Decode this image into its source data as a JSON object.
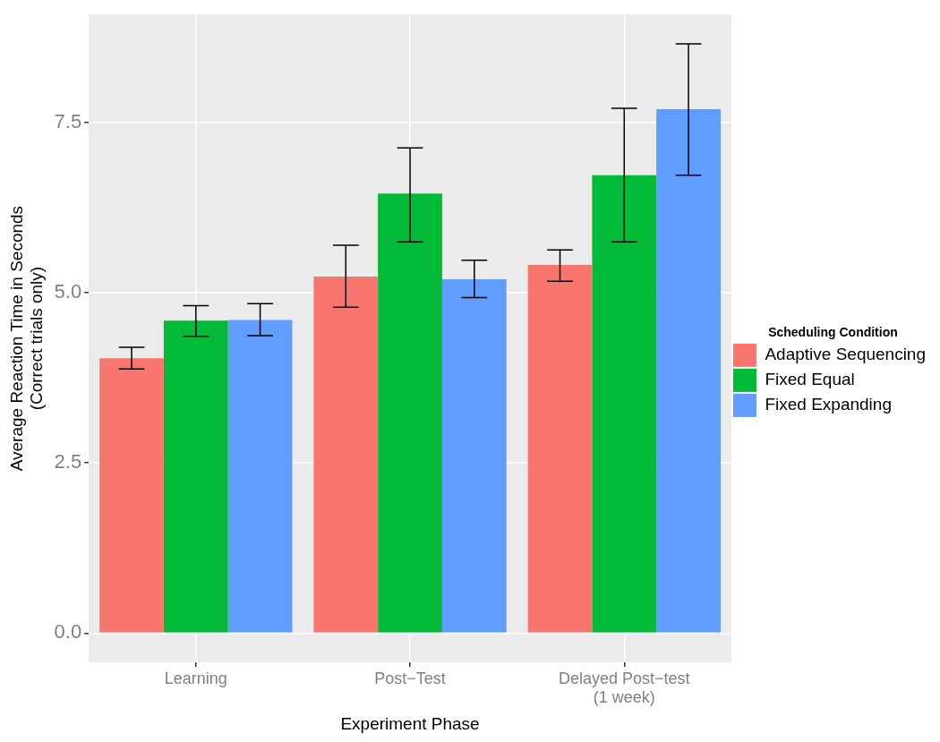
{
  "chart_data": {
    "type": "bar",
    "xlabel": "Experiment Phase",
    "ylabel": "Average Reaction Time in Seconds\n(Correct trials only)",
    "legend_title": "Scheduling Condition",
    "categories": [
      "Learning",
      "Post−Test",
      "Delayed Post−test\n(1 week)"
    ],
    "series": [
      {
        "name": "Adaptive Sequencing",
        "color": "#f8766d",
        "values": [
          4.04,
          5.24,
          5.41
        ],
        "errors": [
          [
            3.88,
            4.2
          ],
          [
            4.79,
            5.7
          ],
          [
            5.17,
            5.63
          ]
        ]
      },
      {
        "name": "Fixed Equal",
        "color": "#00ba38",
        "values": [
          4.59,
          6.46,
          6.73
        ],
        "errors": [
          [
            4.36,
            4.81
          ],
          [
            5.75,
            7.13
          ],
          [
            5.75,
            7.71
          ]
        ]
      },
      {
        "name": "Fixed Expanding",
        "color": "#619cff",
        "values": [
          4.6,
          5.2,
          7.7
        ],
        "errors": [
          [
            4.37,
            4.84
          ],
          [
            4.93,
            5.48
          ],
          [
            6.73,
            8.66
          ]
        ]
      }
    ],
    "ylim": [
      -0.43,
      9.09
    ],
    "yticks": [
      {
        "value": 0,
        "label": "0.0"
      },
      {
        "value": 2.5,
        "label": "2.5"
      },
      {
        "value": 5,
        "label": "5.0"
      },
      {
        "value": 7.5,
        "label": "7.5"
      }
    ],
    "grid": true,
    "legend": "right"
  }
}
